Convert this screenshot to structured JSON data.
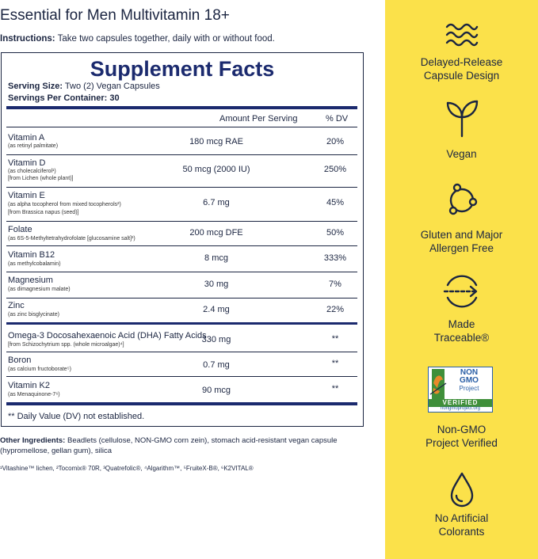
{
  "title": "Essential for Men Multivitamin 18+",
  "instructions": {
    "label": "Instructions:",
    "text": " Take two capsules together, daily with or without food."
  },
  "facts": {
    "heading": "Supplement Facts",
    "serving_size_label": "Serving Size:",
    "serving_size_value": " Two (2) Vegan Capsules",
    "servings_per_container": "Servings Per Container: 30",
    "col_amount": "Amount Per Serving",
    "col_dv": "% DV",
    "rows": [
      {
        "name": "Vitamin A",
        "sub1": "(as retinyl palmitate)",
        "sub2": "",
        "amount": "180 mcg RAE",
        "dv": "20%"
      },
      {
        "name": "Vitamin D",
        "sub1": "(as cholecalciferol¹)",
        "sub2": "[from Lichen (whole plant)]",
        "amount": "50 mcg (2000 IU)",
        "dv": "250%"
      },
      {
        "name": "Vitamin E",
        "sub1": "(as alpha tocopherol from mixed tocopherols²)",
        "sub2": "[from Brassica napus (seed)]",
        "amount": "6.7 mg",
        "dv": "45%"
      },
      {
        "name": "Folate",
        "sub1": "(as 6S-5-Methyltetrahydrofolate [glucosamine salt]³)",
        "sub2": "",
        "amount": "200 mcg DFE",
        "dv": "50%"
      },
      {
        "name": "Vitamin B12",
        "sub1": "(as methylcobalamin)",
        "sub2": "",
        "amount": "8 mcg",
        "dv": "333%"
      },
      {
        "name": "Magnesium",
        "sub1": "(as dimagnesium malate)",
        "sub2": "",
        "amount": "30 mg",
        "dv": "7%"
      },
      {
        "name": "Zinc",
        "sub1": "(as zinc bisglycinate)",
        "sub2": "",
        "amount": "2.4 mg",
        "dv": "22%"
      },
      {
        "name": "Omega-3 Docosahexaenoic Acid (DHA) Fatty Acids",
        "sub1": "[from Schizochytrium spp. (whole microalgae)⁴]",
        "sub2": "",
        "amount": "330 mg",
        "dv": "**"
      },
      {
        "name": "Boron",
        "sub1": "(as calcium fructoborate⁵)",
        "sub2": "",
        "amount": "0.7 mg",
        "dv": "**"
      },
      {
        "name": "Vitamin K2",
        "sub1": "(as Menaquinone-7⁶)",
        "sub2": "",
        "amount": "90 mcg",
        "dv": "**"
      }
    ],
    "footnote": "** Daily Value (DV) not established."
  },
  "other_ingredients": {
    "label": "Other Ingredients:",
    "text": " Beadlets (cellulose, NON-GMO corn zein), stomach acid-resistant vegan capsule (hypromellose, gellan gum), silica"
  },
  "trademarks": "¹Vitashine™ lichen, ²Tocomix® 70R, ³Quatrefolic®, ⁴Algarithm™, ⁵FruiteX-B®, ⁶K2VITAL®",
  "features": [
    {
      "icon": "waves-icon",
      "label_line1": "Delayed-Release",
      "label_line2": "Capsule Design"
    },
    {
      "icon": "sprout-icon",
      "label_line1": "Vegan",
      "label_line2": ""
    },
    {
      "icon": "molecule-icon",
      "label_line1": "Gluten and Major",
      "label_line2": "Allergen Free"
    },
    {
      "icon": "traceable-arrow-icon",
      "label_line1": "Made",
      "label_line2": "Traceable®"
    },
    {
      "icon": "non-gmo-badge",
      "label_line1": "Non-GMO",
      "label_line2": "Project Verified"
    },
    {
      "icon": "drop-icon",
      "label_line1": "No Artificial",
      "label_line2": "Colorants"
    }
  ],
  "badge": {
    "line1": "NON",
    "line2": "GMO",
    "line3": "Project",
    "verified": "VERIFIED",
    "url": "nongmoproject.org"
  },
  "colors": {
    "yellow": "#fbe14a",
    "navy": "#1b2541",
    "facts_blue": "#1b2a6e",
    "ngmo_blue": "#2a5fa6",
    "ngmo_green": "#3f8f3a"
  }
}
